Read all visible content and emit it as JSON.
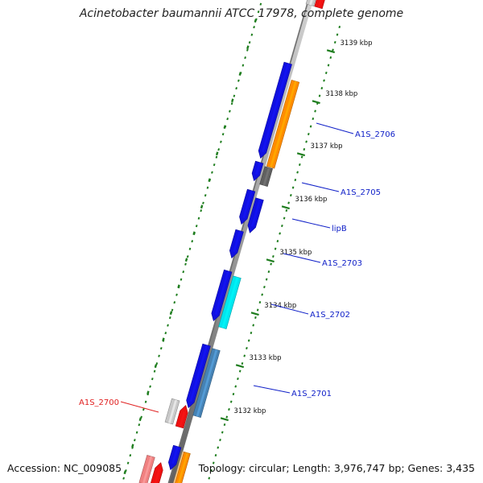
{
  "title": "Acinetobacter baumannii ATCC 17978, complete genome",
  "accession": "Accession: NC_009085",
  "topology": "Topology: circular; Length: 3,976,747 bp; Genes: 3,435",
  "colors": {
    "backbone": "#8a8a8a",
    "tick": "#1e7d1e",
    "gene_label_blue": "#1020c8",
    "gene_label_red": "#e02020"
  },
  "ticks": [
    {
      "label": "3139 kbp"
    },
    {
      "label": "3138 kbp"
    },
    {
      "label": "3137 kbp"
    },
    {
      "label": "3136 kbp"
    },
    {
      "label": "3135 kbp"
    },
    {
      "label": "3134 kbp"
    },
    {
      "label": "3133 kbp"
    },
    {
      "label": "3132 kbp"
    }
  ],
  "gene_labels": [
    {
      "name": "A1S_2706",
      "color": "#1020c8"
    },
    {
      "name": "A1S_2705",
      "color": "#1020c8"
    },
    {
      "name": "lipB",
      "color": "#1020c8"
    },
    {
      "name": "A1S_2703",
      "color": "#1020c8"
    },
    {
      "name": "A1S_2702",
      "color": "#1020c8"
    },
    {
      "name": "A1S_2701",
      "color": "#1020c8"
    },
    {
      "name": "A1S_2700",
      "color": "#e02020"
    }
  ],
  "feature_colors": {
    "blue": "#1010e0",
    "orange": "#ff8c00",
    "gray": "#606060",
    "cyan": "#00e5ee",
    "steel": "#4682b4",
    "lightgray": "#c8c8c8",
    "red": "#ee1010",
    "salmon": "#f08080",
    "peach": "#ffcf8a"
  }
}
